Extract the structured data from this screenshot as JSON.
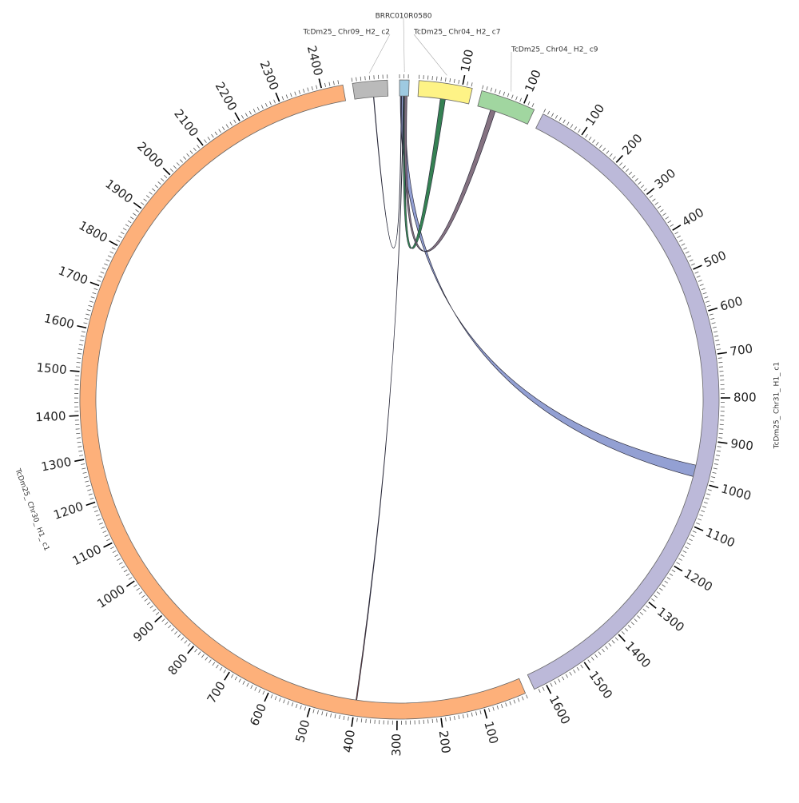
{
  "chart_data": {
    "type": "chord",
    "title": "",
    "tick_major_interval": 100,
    "tick_minor_interval": 10,
    "segments": [
      {
        "name": "BRRC010R0580",
        "length": 22,
        "color": "#9ecae1"
      },
      {
        "name": "TcDm25_Chr04_H2_c7",
        "length": 123,
        "color": "#fef386"
      },
      {
        "name": "TcDm25_Chr04_H2_c9",
        "length": 127,
        "color": "#a1d6a0"
      },
      {
        "name": "TcDm25_Chr31_H1_c1",
        "length": 1629,
        "color": "#bcb9d9"
      },
      {
        "name": "TcDm25_Chr30_H1_c1",
        "length": 2449,
        "color": "#fdb07a"
      },
      {
        "name": "TcDm25_Chr09_H2_c2",
        "length": 80,
        "color": "#bababa"
      }
    ],
    "links": [
      {
        "from": "BRRC010R0580",
        "from_range": [
          2,
          14
        ],
        "to": "TcDm25_Chr31_H1_c1",
        "to_range": [
          962,
          990
        ],
        "color": "#8d9bd1"
      },
      {
        "from": "BRRC010R0580",
        "from_range": [
          9,
          10
        ],
        "to": "TcDm25_Chr30_H1_c1",
        "to_range": [
          397,
          399
        ],
        "color": "#b5502e"
      },
      {
        "from": "BRRC010R0580",
        "from_range": [
          10,
          16
        ],
        "to": "TcDm25_Chr04_H2_c7",
        "to_range": [
          54,
          66
        ],
        "color": "#2a7a4a"
      },
      {
        "from": "BRRC010R0580",
        "from_range": [
          12,
          18
        ],
        "to": "TcDm25_Chr04_H2_c9",
        "to_range": [
          32,
          44
        ],
        "color": "#7e6a7a"
      },
      {
        "from": "TcDm25_Chr09_H2_c2",
        "from_range": [
          45,
          46
        ],
        "to": "BRRC010R0580",
        "to_range": [
          4,
          5
        ],
        "color": "#2f6f8f"
      }
    ]
  }
}
